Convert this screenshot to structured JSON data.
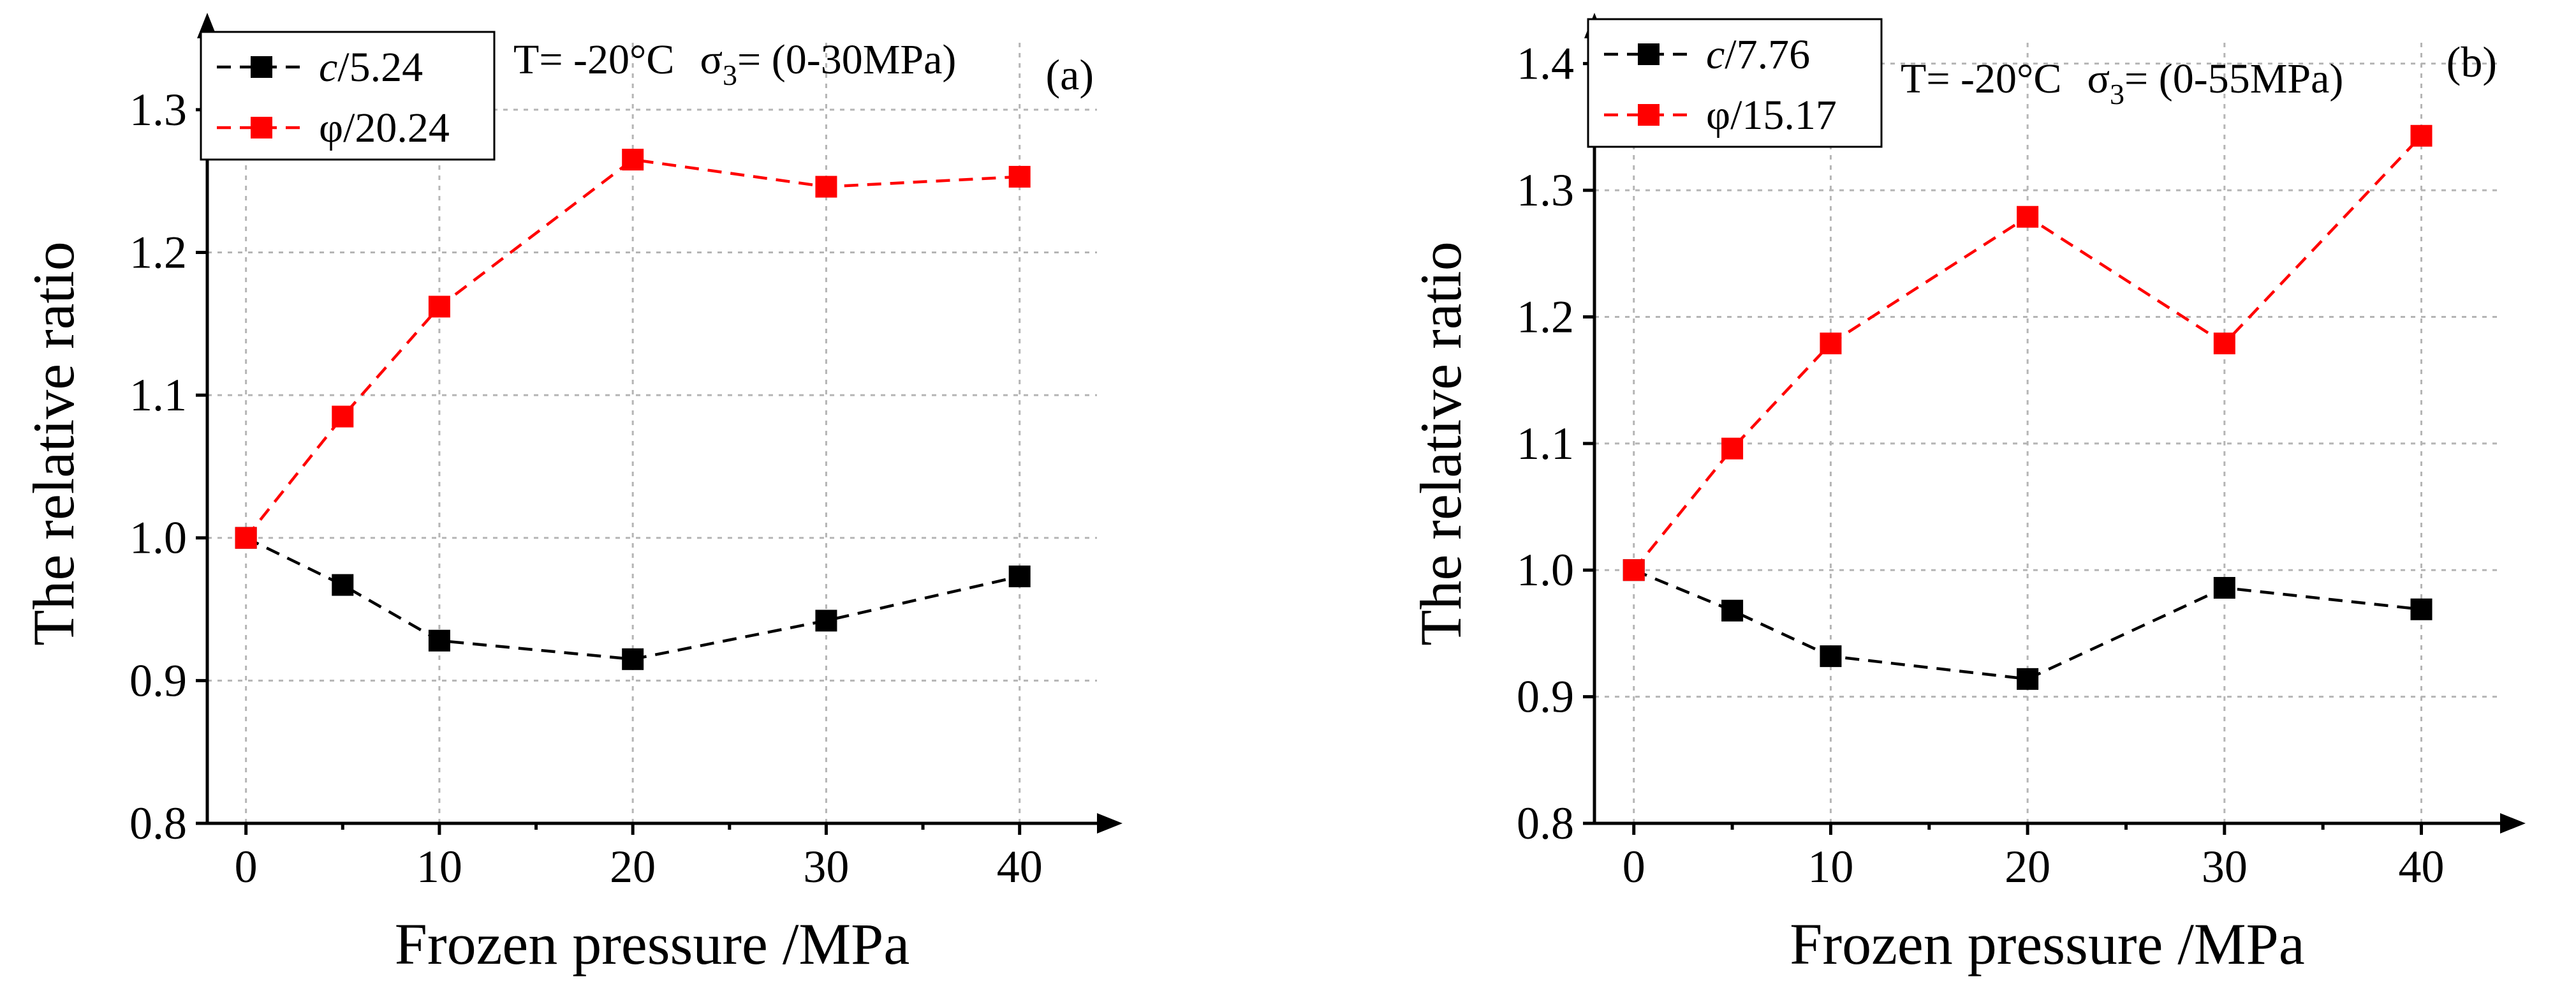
{
  "chart_data": [
    {
      "type": "line",
      "panel_label": "(a)",
      "annotation": {
        "T": "T= -20°C",
        "sigma_sym": "σ",
        "sigma_sub": "3",
        "sigma_val": "= (0-30MPa)"
      },
      "xlabel": "Frozen pressure /MPa",
      "ylabel": "The relative ratio",
      "xlim": [
        -2,
        44
      ],
      "ylim": [
        0.8,
        1.35
      ],
      "x_ticks": [
        0,
        10,
        20,
        30,
        40
      ],
      "x_tick_labels": [
        "0",
        "10",
        "20",
        "30",
        "40"
      ],
      "y_ticks": [
        0.8,
        0.9,
        1.0,
        1.1,
        1.2,
        1.3
      ],
      "y_tick_labels": [
        "0.8",
        "0.9",
        "1.0",
        "1.1",
        "1.2",
        "1.3"
      ],
      "grid": true,
      "legend_position": "top-left",
      "series": [
        {
          "name_sym": "c",
          "name_rest": "/5.24",
          "italic": true,
          "color": "#000000",
          "x": [
            0,
            5,
            10,
            20,
            30,
            40
          ],
          "y": [
            1.0,
            0.967,
            0.928,
            0.915,
            0.942,
            0.973
          ]
        },
        {
          "name_sym": "φ",
          "name_rest": "/20.24",
          "italic": false,
          "color": "#ff0000",
          "x": [
            0,
            5,
            10,
            20,
            30,
            40
          ],
          "y": [
            1.0,
            1.085,
            1.162,
            1.265,
            1.246,
            1.253
          ]
        }
      ]
    },
    {
      "type": "line",
      "panel_label": "(b)",
      "annotation": {
        "T": "T= -20°C",
        "sigma_sym": "σ",
        "sigma_sub": "3",
        "sigma_val": "= (0-55MPa)"
      },
      "xlabel": "Frozen pressure /MPa",
      "ylabel": "The relative ratio",
      "xlim": [
        -2,
        44
      ],
      "ylim": [
        0.8,
        1.42
      ],
      "x_ticks": [
        0,
        10,
        20,
        30,
        40
      ],
      "x_tick_labels": [
        "0",
        "10",
        "20",
        "30",
        "40"
      ],
      "y_ticks": [
        0.8,
        0.9,
        1.0,
        1.1,
        1.2,
        1.3,
        1.4
      ],
      "y_tick_labels": [
        "0.8",
        "0.9",
        "1.0",
        "1.1",
        "1.2",
        "1.3",
        "1.4"
      ],
      "grid": true,
      "legend_position": "top-left",
      "series": [
        {
          "name_sym": "c",
          "name_rest": "/7.76",
          "italic": true,
          "color": "#000000",
          "x": [
            0,
            5,
            10,
            20,
            30,
            40
          ],
          "y": [
            1.0,
            0.968,
            0.932,
            0.914,
            0.986,
            0.969
          ]
        },
        {
          "name_sym": "φ",
          "name_rest": "/15.17",
          "italic": false,
          "color": "#ff0000",
          "x": [
            0,
            5,
            10,
            20,
            30,
            40
          ],
          "y": [
            1.0,
            1.096,
            1.179,
            1.279,
            1.179,
            1.343
          ]
        }
      ]
    }
  ]
}
